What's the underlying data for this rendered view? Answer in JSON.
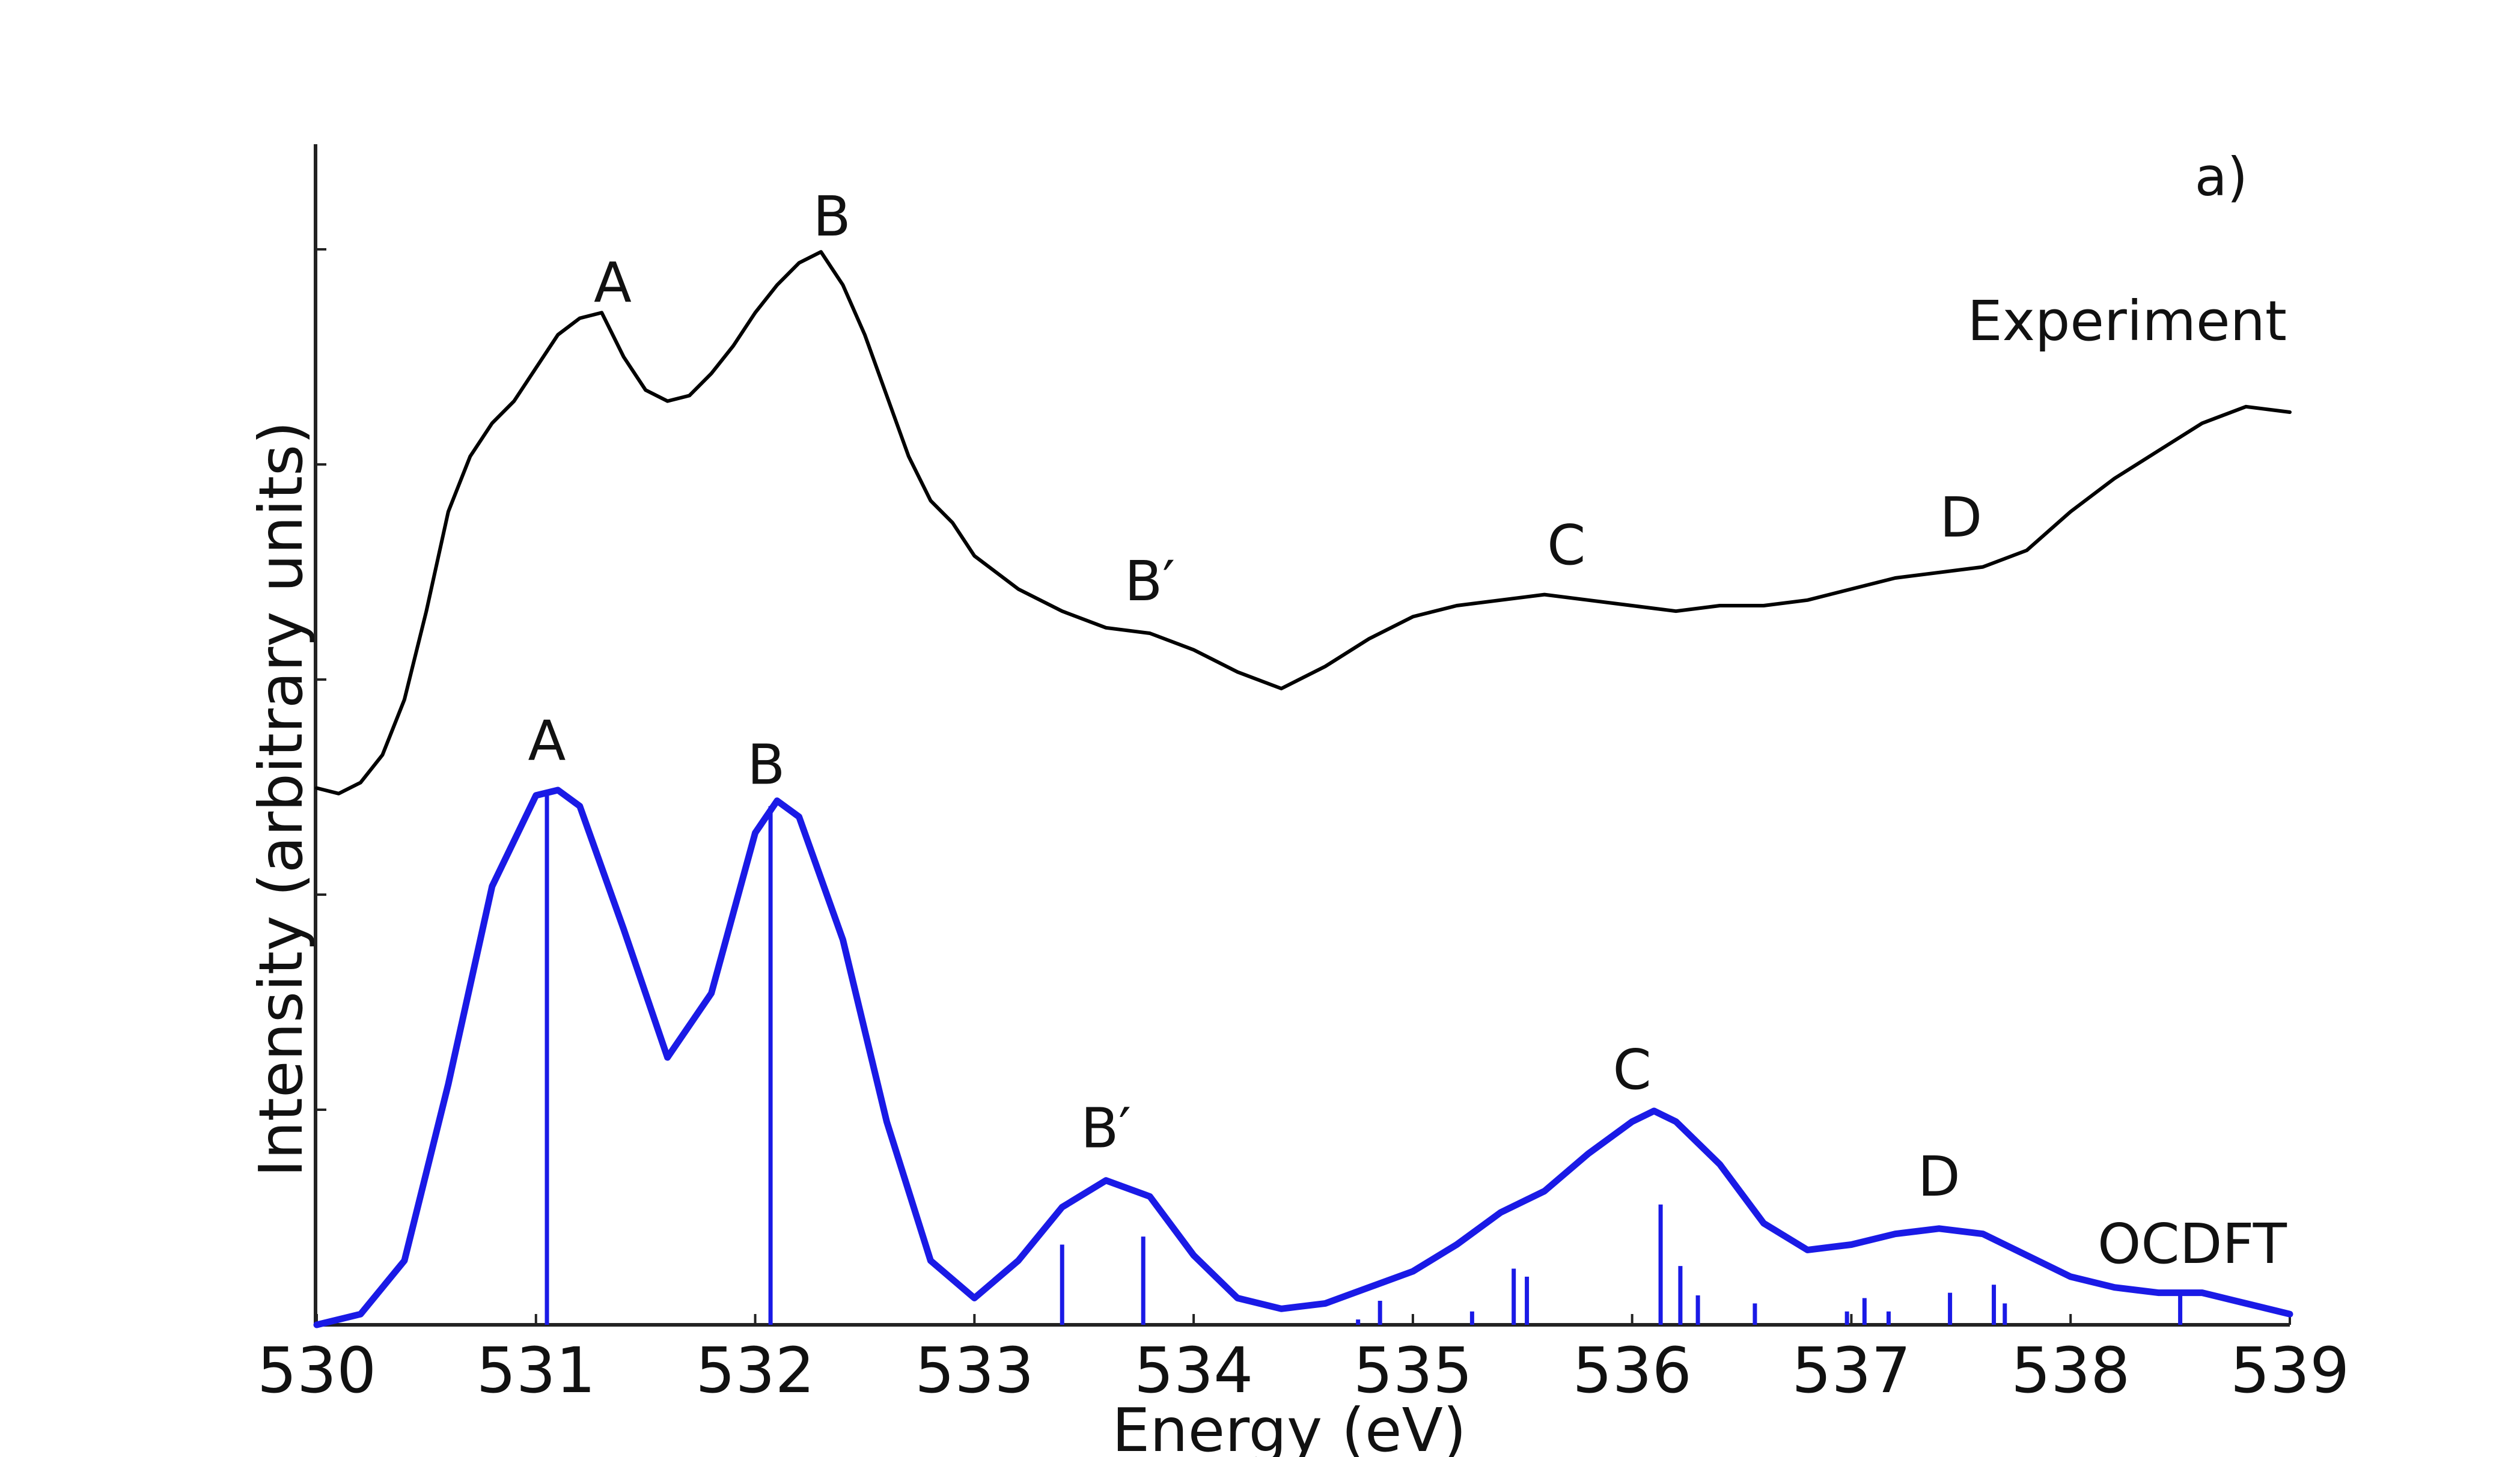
{
  "chart_data": {
    "type": "line",
    "panel_label": "a)",
    "xlabel": "Energy (eV)",
    "ylabel": "Intensity (arbitrary units)",
    "xlim": [
      530,
      539
    ],
    "x_ticks": [
      530,
      531,
      532,
      533,
      534,
      535,
      536,
      537,
      538,
      539
    ],
    "y_ticks_count": 5,
    "grid": false,
    "series": [
      {
        "name": "Experiment",
        "color": "#000000",
        "x": [
          530.0,
          530.1,
          530.2,
          530.3,
          530.4,
          530.5,
          530.6,
          530.7,
          530.8,
          530.9,
          531.0,
          531.1,
          531.2,
          531.3,
          531.4,
          531.5,
          531.6,
          531.7,
          531.8,
          531.9,
          532.0,
          532.1,
          532.2,
          532.3,
          532.4,
          532.5,
          532.6,
          532.7,
          532.8,
          532.9,
          533.0,
          533.2,
          533.4,
          533.6,
          533.8,
          534.0,
          534.2,
          534.4,
          534.6,
          534.8,
          535.0,
          535.2,
          535.4,
          535.6,
          535.8,
          536.0,
          536.2,
          536.4,
          536.6,
          536.8,
          537.0,
          537.2,
          537.4,
          537.6,
          537.8,
          538.0,
          538.2,
          538.4,
          538.6,
          538.8,
          539.0
        ],
        "y": [
          0.02,
          0.01,
          0.03,
          0.08,
          0.18,
          0.34,
          0.52,
          0.62,
          0.68,
          0.72,
          0.78,
          0.84,
          0.87,
          0.88,
          0.8,
          0.74,
          0.72,
          0.73,
          0.77,
          0.82,
          0.88,
          0.93,
          0.97,
          0.99,
          0.93,
          0.84,
          0.73,
          0.62,
          0.54,
          0.5,
          0.44,
          0.38,
          0.34,
          0.31,
          0.3,
          0.27,
          0.23,
          0.2,
          0.24,
          0.29,
          0.33,
          0.35,
          0.36,
          0.37,
          0.36,
          0.35,
          0.34,
          0.35,
          0.35,
          0.36,
          0.38,
          0.4,
          0.41,
          0.42,
          0.45,
          0.52,
          0.58,
          0.63,
          0.68,
          0.71,
          0.7
        ]
      },
      {
        "name": "OCDFT",
        "color": "#1a1ae6",
        "x": [
          530.0,
          530.2,
          530.4,
          530.6,
          530.8,
          531.0,
          531.1,
          531.2,
          531.4,
          531.6,
          531.8,
          532.0,
          532.1,
          532.2,
          532.4,
          532.6,
          532.8,
          533.0,
          533.2,
          533.4,
          533.6,
          533.8,
          534.0,
          534.2,
          534.4,
          534.6,
          534.8,
          535.0,
          535.2,
          535.4,
          535.6,
          535.8,
          536.0,
          536.1,
          536.2,
          536.4,
          536.6,
          536.8,
          537.0,
          537.2,
          537.4,
          537.6,
          537.8,
          538.0,
          538.2,
          538.4,
          538.6,
          538.8,
          539.0
        ],
        "y": [
          0.0,
          0.02,
          0.12,
          0.45,
          0.82,
          0.99,
          1.0,
          0.97,
          0.74,
          0.5,
          0.62,
          0.92,
          0.98,
          0.95,
          0.72,
          0.38,
          0.12,
          0.05,
          0.12,
          0.22,
          0.27,
          0.24,
          0.13,
          0.05,
          0.03,
          0.04,
          0.07,
          0.1,
          0.15,
          0.21,
          0.25,
          0.32,
          0.38,
          0.4,
          0.38,
          0.3,
          0.19,
          0.14,
          0.15,
          0.17,
          0.18,
          0.17,
          0.13,
          0.09,
          0.07,
          0.06,
          0.06,
          0.04,
          0.02
        ]
      }
    ],
    "sticks": {
      "name": "OCDFT transitions",
      "color": "#1a1ae6",
      "x": [
        531.05,
        532.07,
        533.4,
        533.77,
        534.75,
        534.85,
        535.27,
        535.46,
        535.52,
        536.13,
        536.22,
        536.3,
        536.56,
        536.98,
        537.06,
        537.17,
        537.45,
        537.65,
        537.7,
        538.5
      ],
      "height": [
        1.0,
        0.97,
        0.15,
        0.165,
        0.01,
        0.045,
        0.025,
        0.105,
        0.09,
        0.225,
        0.11,
        0.055,
        0.04,
        0.025,
        0.05,
        0.025,
        0.06,
        0.075,
        0.04,
        0.06
      ]
    },
    "annotations": [
      {
        "series": "Experiment",
        "text": "A",
        "x": 531.35
      },
      {
        "series": "Experiment",
        "text": "B",
        "x": 532.35
      },
      {
        "series": "Experiment",
        "text": "B′",
        "x": 533.8
      },
      {
        "series": "Experiment",
        "text": "C",
        "x": 535.7
      },
      {
        "series": "Experiment",
        "text": "D",
        "x": 537.5
      },
      {
        "series": "OCDFT",
        "text": "A",
        "x": 531.05
      },
      {
        "series": "OCDFT",
        "text": "B",
        "x": 532.05
      },
      {
        "series": "OCDFT",
        "text": "B′",
        "x": 533.6
      },
      {
        "series": "OCDFT",
        "text": "C",
        "x": 536.0
      },
      {
        "series": "OCDFT",
        "text": "D",
        "x": 537.4
      }
    ]
  }
}
